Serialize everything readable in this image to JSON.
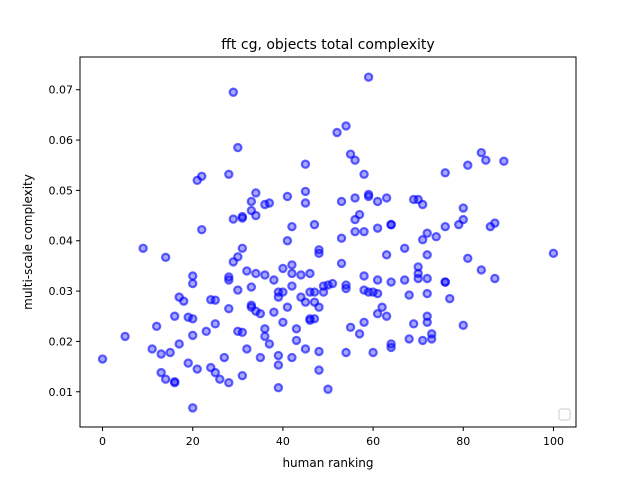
{
  "chart_data": {
    "type": "scatter",
    "title": "fft cg, objects total complexity",
    "xlabel": "human ranking",
    "ylabel": "multi-scale complexity",
    "xlim": [
      -5,
      105
    ],
    "ylim": [
      0.003,
      0.0765
    ],
    "xticks": [
      0,
      20,
      40,
      60,
      80,
      100
    ],
    "xtick_labels": [
      "0",
      "20",
      "40",
      "60",
      "80",
      "100"
    ],
    "yticks": [
      0.01,
      0.02,
      0.03,
      0.04,
      0.05,
      0.06,
      0.07
    ],
    "ytick_labels": [
      "0.01",
      "0.02",
      "0.03",
      "0.04",
      "0.05",
      "0.06",
      "0.07"
    ],
    "grid": false,
    "legend": "lower-right, empty",
    "marker_color": "#0000ff",
    "series": [
      {
        "points": [
          [
            0,
            0.0165
          ],
          [
            5,
            0.021
          ],
          [
            9,
            0.0385
          ],
          [
            11,
            0.0185
          ],
          [
            12,
            0.023
          ],
          [
            13,
            0.0175
          ],
          [
            13,
            0.0138
          ],
          [
            14,
            0.0367
          ],
          [
            14,
            0.0125
          ],
          [
            15,
            0.0178
          ],
          [
            16,
            0.025
          ],
          [
            16,
            0.012
          ],
          [
            16,
            0.0118
          ],
          [
            17,
            0.0288
          ],
          [
            17,
            0.0195
          ],
          [
            18,
            0.028
          ],
          [
            19,
            0.0248
          ],
          [
            19,
            0.0157
          ],
          [
            20,
            0.033
          ],
          [
            20,
            0.0315
          ],
          [
            20,
            0.0245
          ],
          [
            20,
            0.0212
          ],
          [
            20,
            0.0068
          ],
          [
            21,
            0.052
          ],
          [
            21,
            0.0145
          ],
          [
            22,
            0.0528
          ],
          [
            22,
            0.0422
          ],
          [
            23,
            0.022
          ],
          [
            24,
            0.0283
          ],
          [
            24,
            0.0148
          ],
          [
            25,
            0.0282
          ],
          [
            25,
            0.0235
          ],
          [
            25,
            0.0138
          ],
          [
            26,
            0.0125
          ],
          [
            27,
            0.0168
          ],
          [
            28,
            0.0532
          ],
          [
            28,
            0.0328
          ],
          [
            28,
            0.0322
          ],
          [
            28,
            0.0265
          ],
          [
            28,
            0.0118
          ],
          [
            29,
            0.0695
          ],
          [
            29,
            0.0443
          ],
          [
            29,
            0.0358
          ],
          [
            30,
            0.0585
          ],
          [
            30,
            0.0368
          ],
          [
            30,
            0.0302
          ],
          [
            30,
            0.022
          ],
          [
            31,
            0.0448
          ],
          [
            31,
            0.0445
          ],
          [
            31,
            0.0385
          ],
          [
            31,
            0.0218
          ],
          [
            31,
            0.0132
          ],
          [
            32,
            0.034
          ],
          [
            32,
            0.0185
          ],
          [
            33,
            0.0478
          ],
          [
            33,
            0.046
          ],
          [
            33,
            0.0308
          ],
          [
            33,
            0.0272
          ],
          [
            33,
            0.0268
          ],
          [
            34,
            0.0495
          ],
          [
            34,
            0.045
          ],
          [
            34,
            0.0335
          ],
          [
            34,
            0.026
          ],
          [
            35,
            0.0255
          ],
          [
            35,
            0.0168
          ],
          [
            36,
            0.0472
          ],
          [
            36,
            0.0332
          ],
          [
            36,
            0.0225
          ],
          [
            36,
            0.021
          ],
          [
            37,
            0.0475
          ],
          [
            37,
            0.0195
          ],
          [
            38,
            0.0322
          ],
          [
            38,
            0.0258
          ],
          [
            39,
            0.0298
          ],
          [
            39,
            0.0288
          ],
          [
            39,
            0.0172
          ],
          [
            39,
            0.0153
          ],
          [
            39,
            0.0108
          ],
          [
            40,
            0.0298
          ],
          [
            40,
            0.0238
          ],
          [
            40,
            0.0345
          ],
          [
            41,
            0.0488
          ],
          [
            41,
            0.04
          ],
          [
            41,
            0.0268
          ],
          [
            42,
            0.0428
          ],
          [
            42,
            0.0352
          ],
          [
            42,
            0.0335
          ],
          [
            42,
            0.031
          ],
          [
            42,
            0.0168
          ],
          [
            43,
            0.0225
          ],
          [
            43,
            0.0202
          ],
          [
            44,
            0.0332
          ],
          [
            44,
            0.0288
          ],
          [
            45,
            0.0552
          ],
          [
            45,
            0.0498
          ],
          [
            45,
            0.0475
          ],
          [
            45,
            0.0278
          ],
          [
            45,
            0.0185
          ],
          [
            46,
            0.0335
          ],
          [
            46,
            0.0298
          ],
          [
            46,
            0.0245
          ],
          [
            46,
            0.0242
          ],
          [
            47,
            0.0432
          ],
          [
            47,
            0.0298
          ],
          [
            47,
            0.0278
          ],
          [
            47,
            0.0245
          ],
          [
            48,
            0.0382
          ],
          [
            48,
            0.0375
          ],
          [
            48,
            0.0268
          ],
          [
            48,
            0.018
          ],
          [
            48,
            0.0143
          ],
          [
            49,
            0.031
          ],
          [
            49,
            0.0298
          ],
          [
            50,
            0.0312
          ],
          [
            50,
            0.0105
          ],
          [
            51,
            0.0315
          ],
          [
            52,
            0.0615
          ],
          [
            53,
            0.0478
          ],
          [
            53,
            0.0405
          ],
          [
            53,
            0.0355
          ],
          [
            54,
            0.0628
          ],
          [
            54,
            0.0312
          ],
          [
            54,
            0.0305
          ],
          [
            54,
            0.0178
          ],
          [
            55,
            0.0572
          ],
          [
            55,
            0.0228
          ],
          [
            56,
            0.056
          ],
          [
            56,
            0.0485
          ],
          [
            56,
            0.0442
          ],
          [
            56,
            0.0418
          ],
          [
            57,
            0.0452
          ],
          [
            57,
            0.0215
          ],
          [
            58,
            0.0532
          ],
          [
            58,
            0.0418
          ],
          [
            58,
            0.033
          ],
          [
            58,
            0.0302
          ],
          [
            58,
            0.0238
          ],
          [
            59,
            0.0725
          ],
          [
            59,
            0.0492
          ],
          [
            59,
            0.0488
          ],
          [
            59,
            0.0298
          ],
          [
            60,
            0.0298
          ],
          [
            60,
            0.0178
          ],
          [
            61,
            0.0478
          ],
          [
            61,
            0.0425
          ],
          [
            61,
            0.0322
          ],
          [
            61,
            0.0295
          ],
          [
            61,
            0.0255
          ],
          [
            62,
            0.0268
          ],
          [
            63,
            0.0485
          ],
          [
            63,
            0.0372
          ],
          [
            63,
            0.025
          ],
          [
            64,
            0.0432
          ],
          [
            64,
            0.0432
          ],
          [
            64,
            0.0318
          ],
          [
            64,
            0.0195
          ],
          [
            64,
            0.0188
          ],
          [
            67,
            0.0385
          ],
          [
            67,
            0.0322
          ],
          [
            68,
            0.0292
          ],
          [
            68,
            0.0205
          ],
          [
            69,
            0.0482
          ],
          [
            69,
            0.0235
          ],
          [
            70,
            0.0482
          ],
          [
            70,
            0.0348
          ],
          [
            70,
            0.0335
          ],
          [
            70,
            0.0325
          ],
          [
            71,
            0.0472
          ],
          [
            71,
            0.0402
          ],
          [
            71,
            0.0202
          ],
          [
            72,
            0.0415
          ],
          [
            72,
            0.0372
          ],
          [
            72,
            0.0325
          ],
          [
            72,
            0.0295
          ],
          [
            72,
            0.025
          ],
          [
            72,
            0.0238
          ],
          [
            73,
            0.0215
          ],
          [
            73,
            0.0205
          ],
          [
            74,
            0.0408
          ],
          [
            76,
            0.0535
          ],
          [
            76,
            0.0428
          ],
          [
            76,
            0.0318
          ],
          [
            76,
            0.0318
          ],
          [
            77,
            0.0285
          ],
          [
            79,
            0.0432
          ],
          [
            80,
            0.0465
          ],
          [
            80,
            0.0442
          ],
          [
            80,
            0.0232
          ],
          [
            81,
            0.055
          ],
          [
            81,
            0.0365
          ],
          [
            84,
            0.0575
          ],
          [
            84,
            0.0342
          ],
          [
            85,
            0.056
          ],
          [
            86,
            0.0428
          ],
          [
            87,
            0.0435
          ],
          [
            87,
            0.0325
          ],
          [
            89,
            0.0558
          ],
          [
            100,
            0.0375
          ]
        ]
      }
    ]
  }
}
